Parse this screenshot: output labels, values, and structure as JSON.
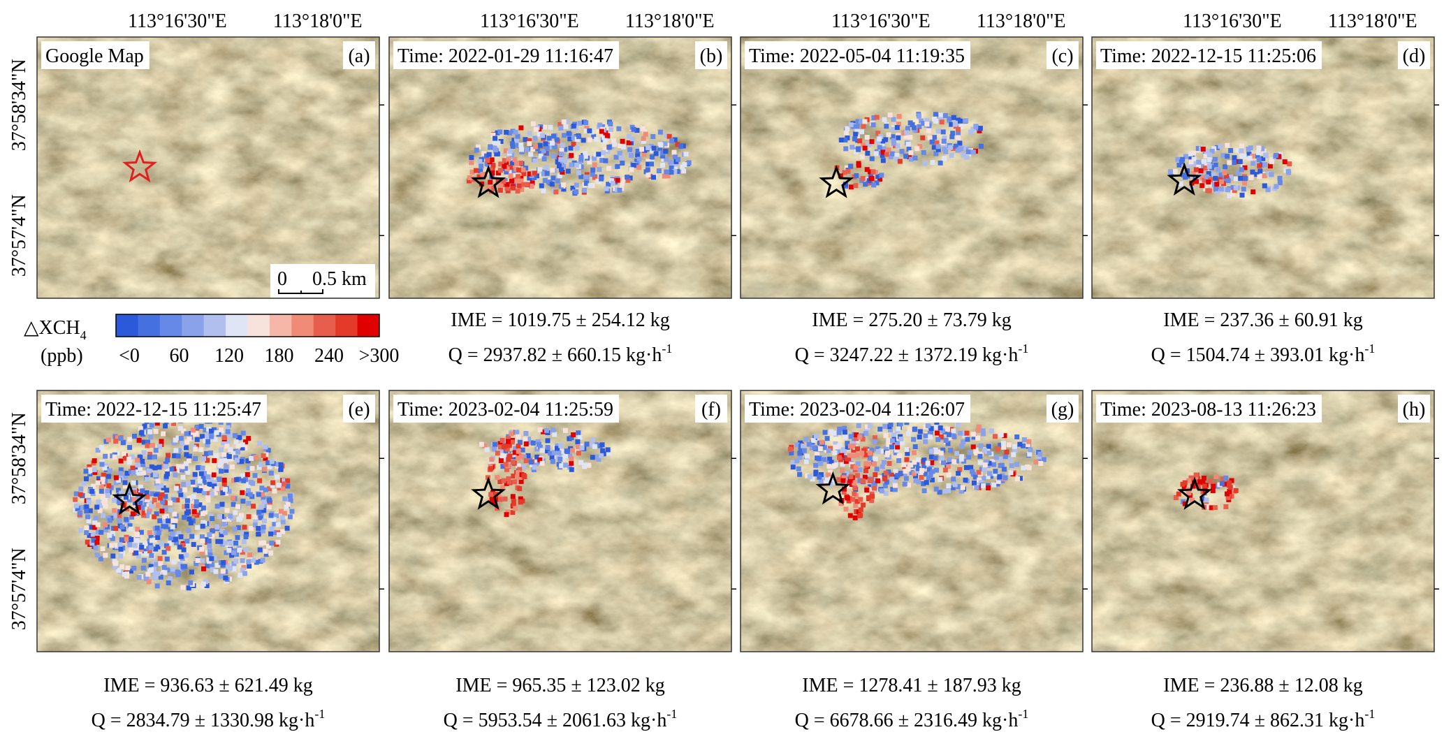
{
  "axis": {
    "lon": [
      "113°16'30\"E",
      "113°18'0\"E"
    ],
    "lat": [
      "37°58'34\"N",
      "37°57'4\"N"
    ]
  },
  "colorbar": {
    "label": "△XCH",
    "subscript": "4",
    "unit": "(ppb)",
    "ticks": [
      "<0",
      "60",
      "120",
      "180",
      "240",
      ">300"
    ]
  },
  "scale_bar": {
    "start": "0",
    "end": "0.5 km"
  },
  "rate_exponent": "-1",
  "panels": [
    {
      "letter": "(a)",
      "header": "Google Map"
    },
    {
      "letter": "(b)",
      "header": "Time: 2022-01-29 11:16:47",
      "ime": "IME = 1019.75 ± 254.12 kg",
      "q": "Q = 2937.82 ± 660.15 kg·h"
    },
    {
      "letter": "(c)",
      "header": "Time: 2022-05-04 11:19:35",
      "ime": "IME = 275.20 ± 73.79 kg",
      "q": "Q = 3247.22 ± 1372.19 kg·h"
    },
    {
      "letter": "(d)",
      "header": "Time: 2022-12-15 11:25:06",
      "ime": "IME = 237.36 ± 60.91 kg",
      "q": "Q = 1504.74 ± 393.01 kg·h"
    },
    {
      "letter": "(e)",
      "header": "Time: 2022-12-15 11:25:47",
      "ime": "IME = 936.63 ± 621.49 kg",
      "q": "Q = 2834.79 ± 1330.98 kg·h"
    },
    {
      "letter": "(f)",
      "header": "Time: 2023-02-04 11:25:59",
      "ime": "IME = 965.35 ± 123.02 kg",
      "q": "Q = 5953.54 ± 2061.63 kg·h"
    },
    {
      "letter": "(g)",
      "header": "Time: 2023-02-04 11:26:07",
      "ime": "IME = 1278.41 ± 187.93 kg",
      "q": "Q = 6678.66 ± 2316.49 kg·h"
    },
    {
      "letter": "(h)",
      "header": "Time: 2023-08-13 11:26:23",
      "ime": "IME = 236.88 ± 12.08 kg",
      "q": "Q = 2919.74 ± 862.31 kg·h"
    }
  ]
}
